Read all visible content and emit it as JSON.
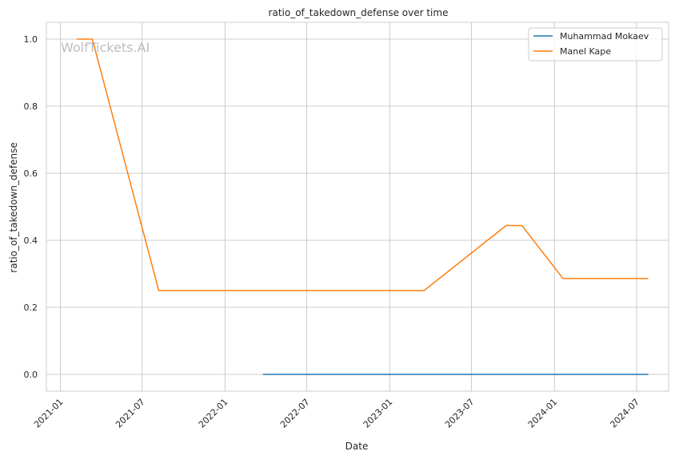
{
  "watermark": "WolfTickets.AI",
  "chart_data": {
    "type": "line",
    "title": "ratio_of_takedown_defense over time",
    "xlabel": "Date",
    "ylabel": "ratio_of_takedown_defense",
    "x_ticks": [
      "2021-01",
      "2021-07",
      "2022-01",
      "2022-07",
      "2023-01",
      "2023-07",
      "2024-01",
      "2024-07"
    ],
    "y_ticks": [
      "0.0",
      "0.2",
      "0.4",
      "0.6",
      "0.8",
      "1.0"
    ],
    "xlim": [
      "2020-12-01",
      "2024-09-10"
    ],
    "ylim": [
      -0.05,
      1.05
    ],
    "grid": true,
    "legend_position": "top-right",
    "series": [
      {
        "name": "Muhammad Mokaev",
        "color": "#1f77b4",
        "points": [
          {
            "x": "2022-03-26",
            "y": 0.0
          },
          {
            "x": "2022-07-23",
            "y": 0.0
          },
          {
            "x": "2023-03-18",
            "y": 0.0
          },
          {
            "x": "2023-09-02",
            "y": 0.0
          },
          {
            "x": "2024-03-16",
            "y": 0.0
          },
          {
            "x": "2024-07-27",
            "y": 0.0
          }
        ]
      },
      {
        "name": "Manel Kape",
        "color": "#ff7f0e",
        "points": [
          {
            "x": "2021-02-06",
            "y": 1.0
          },
          {
            "x": "2021-03-13",
            "y": 1.0
          },
          {
            "x": "2021-08-07",
            "y": 0.25
          },
          {
            "x": "2022-07-23",
            "y": 0.25
          },
          {
            "x": "2023-03-18",
            "y": 0.25
          },
          {
            "x": "2023-09-16",
            "y": 0.444
          },
          {
            "x": "2023-10-21",
            "y": 0.444
          },
          {
            "x": "2024-01-20",
            "y": 0.286
          },
          {
            "x": "2024-07-27",
            "y": 0.286
          }
        ]
      }
    ]
  }
}
